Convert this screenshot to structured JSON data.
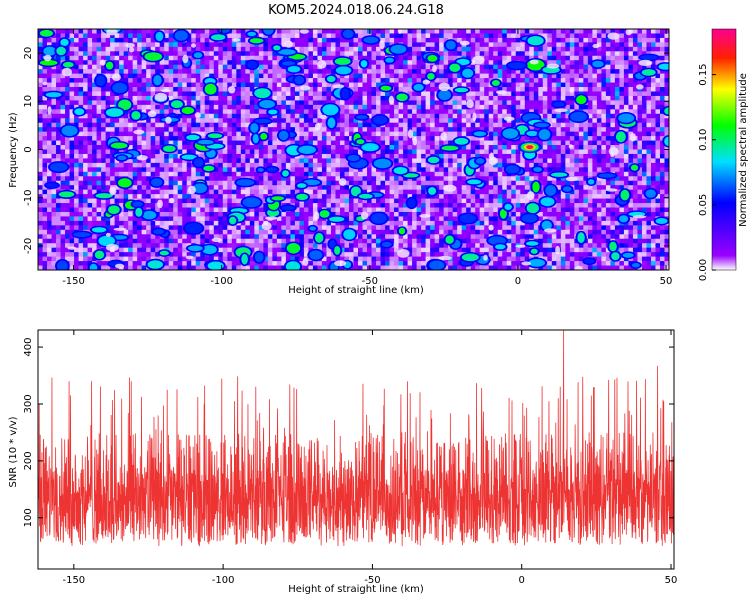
{
  "title": "KOM5.2024.018.06.24.G18",
  "chart_data": [
    {
      "type": "heatmap",
      "xlabel": "Height of straight line (km)",
      "ylabel": "Frequency (Hz)",
      "xlim": [
        -162,
        51
      ],
      "ylim": [
        -25,
        25
      ],
      "xticks": [
        -150,
        -100,
        -50,
        0,
        50
      ],
      "yticks": [
        -20,
        -10,
        0,
        10,
        20
      ],
      "colorbar": {
        "label": "Normalized spectral amplitude",
        "range": [
          0,
          0.185
        ],
        "ticks": [
          "0.00",
          "0.05",
          "0.10",
          "0.15"
        ],
        "colormap": [
          "#ffffff",
          "#8a00ff",
          "#0000ff",
          "#00e5ff",
          "#00ff00",
          "#ffff00",
          "#ff0000",
          "#ff00aa"
        ]
      },
      "peak": {
        "x": 4,
        "y": 0.5,
        "value": 0.185
      },
      "background_level": [
        0.0,
        0.07
      ]
    },
    {
      "type": "line",
      "xlabel": "Height of straight line (km)",
      "ylabel": "SNR (10 * v/v)",
      "xlim": [
        -162,
        51
      ],
      "ylim": [
        10,
        430
      ],
      "xticks": [
        -150,
        -100,
        -50,
        0,
        50
      ],
      "yticks": [
        100,
        200,
        300,
        400
      ],
      "series": [
        {
          "color": "#ee3333",
          "baseline": 120,
          "typical_range": [
            20,
            300
          ],
          "max": 430,
          "max_at_x": 14
        }
      ]
    }
  ]
}
